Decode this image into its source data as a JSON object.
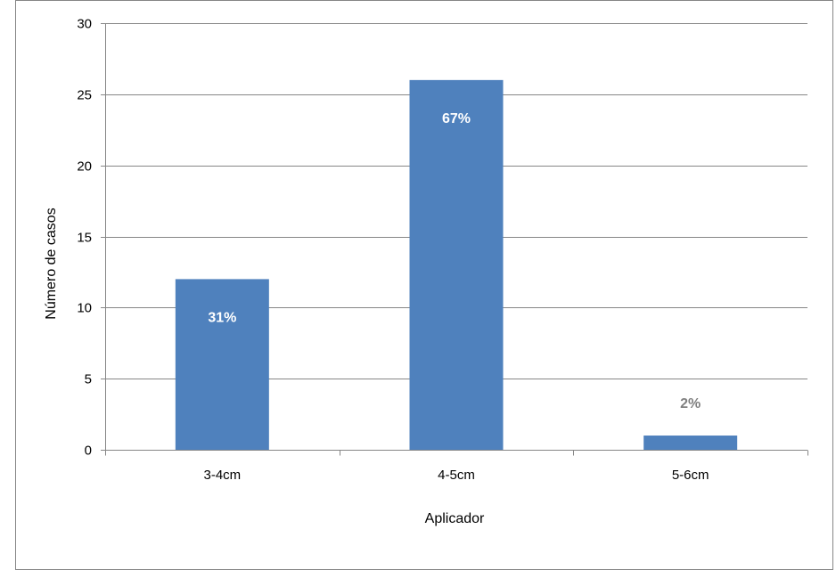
{
  "chart_data": {
    "type": "bar",
    "title": "",
    "xlabel": "Aplicador",
    "ylabel": "Número de casos",
    "categories": [
      "3-4cm",
      "4-5cm",
      "5-6cm"
    ],
    "values": [
      12,
      26,
      1
    ],
    "data_labels": [
      "31%",
      "67%",
      "2%"
    ],
    "data_label_colors": [
      "#ffffff",
      "#ffffff",
      "#808080"
    ],
    "ylim": [
      0,
      30
    ],
    "yticks": [
      0,
      5,
      10,
      15,
      20,
      25,
      30
    ],
    "grid": true,
    "legend": "none",
    "bar_color": "#4f81bd",
    "grid_color": "#868686"
  }
}
